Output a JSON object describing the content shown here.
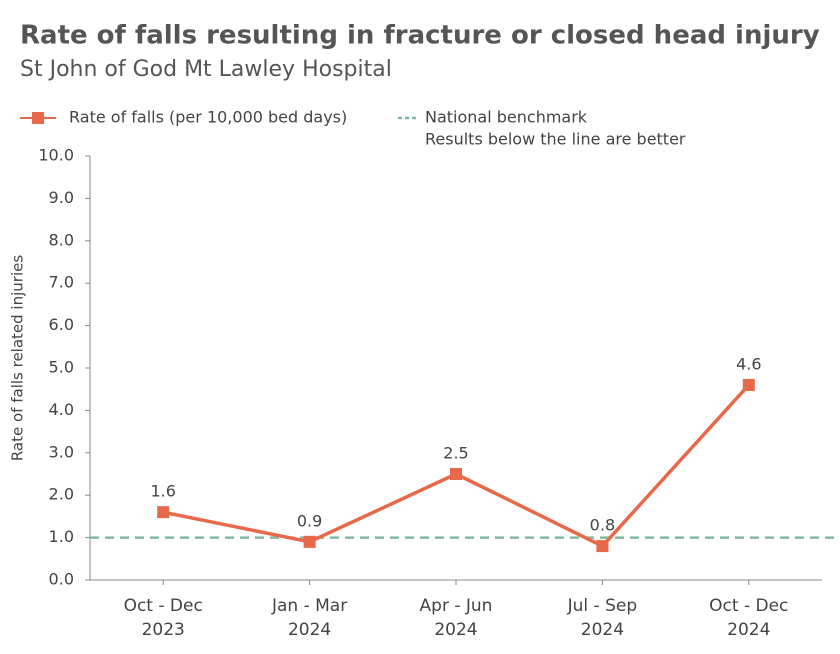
{
  "chart_data": {
    "type": "line",
    "title": "Rate of falls resulting in fracture or closed head injury",
    "subtitle": "St John of God Mt Lawley Hospital",
    "y_label": "Rate of falls related injuries",
    "categories": [
      [
        "Oct - Dec",
        "2023"
      ],
      [
        "Jan - Mar",
        "2024"
      ],
      [
        "Apr - Jun",
        "2024"
      ],
      [
        "Jul - Sep",
        "2024"
      ],
      [
        "Oct - Dec",
        "2024"
      ]
    ],
    "series": [
      {
        "name": "Rate of falls (per 10,000 bed days)",
        "color": "#e8694a",
        "values": [
          1.6,
          0.9,
          2.5,
          0.8,
          4.6
        ]
      }
    ],
    "benchmark": {
      "name": "National benchmark",
      "note": "Results below the line are better",
      "value": 1.0,
      "color": "#82b9a0"
    },
    "ylim": [
      0,
      10
    ],
    "yticks": [
      {
        "value": 0,
        "label": "0.0"
      },
      {
        "value": 1,
        "label": "1.0"
      },
      {
        "value": 2,
        "label": "2.0"
      },
      {
        "value": 3,
        "label": "3.0"
      },
      {
        "value": 4,
        "label": "4.0"
      },
      {
        "value": 5,
        "label": "5.0"
      },
      {
        "value": 6,
        "label": "6.0"
      },
      {
        "value": 7,
        "label": "7.0"
      },
      {
        "value": 8,
        "label": "8.0"
      },
      {
        "value": 9,
        "label": "9.0"
      },
      {
        "value": 10,
        "label": "10.0"
      }
    ]
  }
}
